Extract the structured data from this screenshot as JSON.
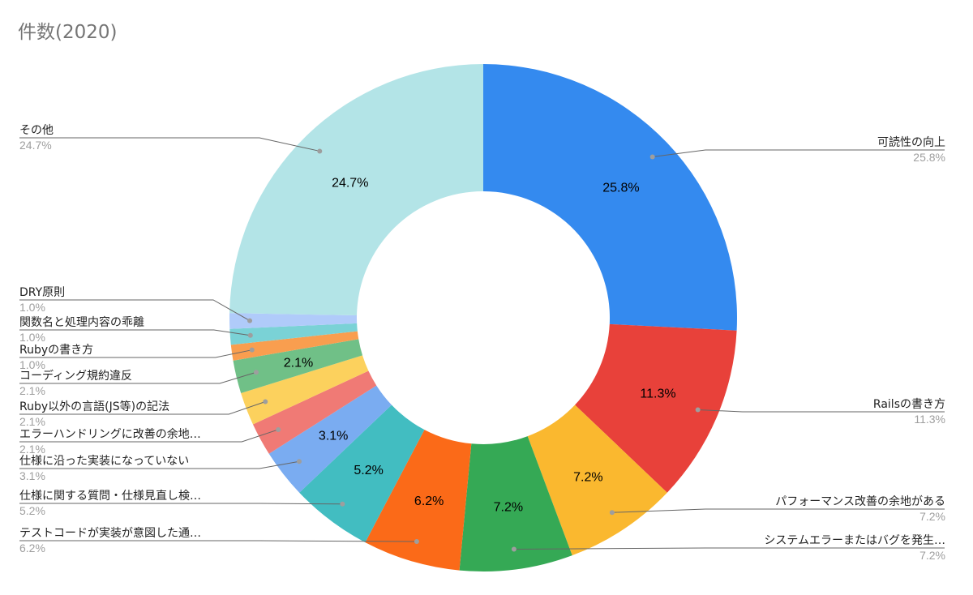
{
  "chart_data": {
    "type": "pie",
    "donut": true,
    "title": "件数(2020)",
    "slices": [
      {
        "label": "可読性の向上",
        "value": 25.8,
        "display": "25.8%",
        "color": "#348AEF",
        "show_inner": true,
        "side": "right"
      },
      {
        "label": "Railsの書き方",
        "value": 11.3,
        "display": "11.3%",
        "color": "#E8413A",
        "show_inner": true,
        "side": "right"
      },
      {
        "label": "パフォーマンス改善の余地がある",
        "value": 7.2,
        "display": "7.2%",
        "color": "#FAB82F",
        "show_inner": true,
        "side": "right"
      },
      {
        "label": "システムエラーまたはバグを発生…",
        "value": 7.2,
        "display": "7.2%",
        "color": "#35A955",
        "show_inner": true,
        "side": "right"
      },
      {
        "label": "テストコードが実装が意図した通…",
        "value": 6.2,
        "display": "6.2%",
        "color": "#FB6A18",
        "show_inner": true,
        "side": "left"
      },
      {
        "label": "仕様に関する質問・仕様見直し検…",
        "value": 5.2,
        "display": "5.2%",
        "color": "#42BDC1",
        "show_inner": true,
        "side": "left"
      },
      {
        "label": "仕様に沿った実装になっていない",
        "value": 3.1,
        "display": "3.1%",
        "color": "#7AACF1",
        "show_inner": true,
        "side": "left"
      },
      {
        "label": "エラーハンドリングに改善の余地…",
        "value": 2.1,
        "display": "2.1%",
        "color": "#F07A75",
        "show_inner": false,
        "side": "left"
      },
      {
        "label": "Ruby以外の言語(JS等)の記法",
        "value": 2.1,
        "display": "2.1%",
        "color": "#FCD15D",
        "show_inner": false,
        "side": "left"
      },
      {
        "label": "コーディング規約違反",
        "value": 2.1,
        "display": "2.1%",
        "color": "#70C087",
        "show_inner": true,
        "side": "left"
      },
      {
        "label": "Rubyの書き方",
        "value": 1.0,
        "display": "1.0%",
        "color": "#F99E4F",
        "show_inner": false,
        "side": "left"
      },
      {
        "label": "関数名と処理内容の乖離",
        "value": 1.0,
        "display": "1.0%",
        "color": "#7AD2D6",
        "show_inner": false,
        "side": "left"
      },
      {
        "label": "DRY原則",
        "value": 1.0,
        "display": "1.0%",
        "color": "#B0CBFA",
        "show_inner": false,
        "side": "left"
      },
      {
        "label": "その他",
        "value": 24.7,
        "display": "24.7%",
        "color": "#B3E4E7",
        "show_inner": true,
        "side": "left"
      }
    ]
  }
}
